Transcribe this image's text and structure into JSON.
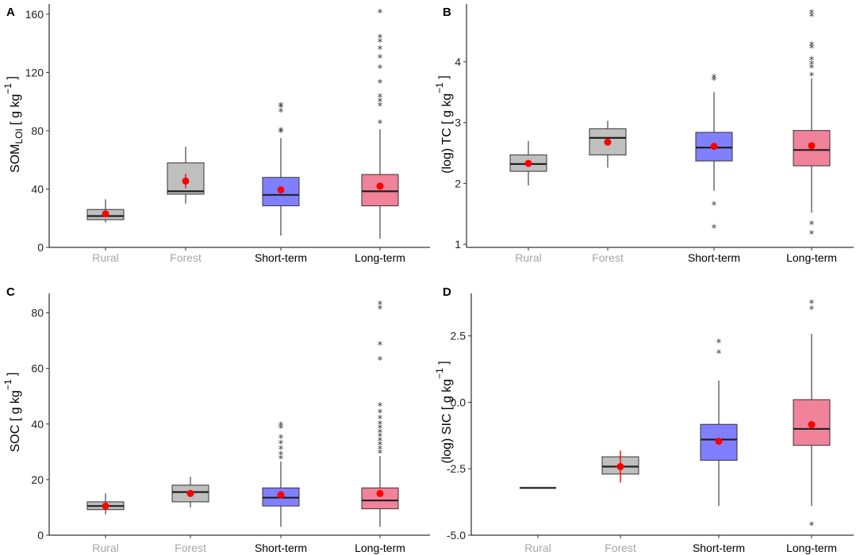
{
  "chart_data": [
    {
      "type": "box",
      "panel": "A",
      "categories": [
        "Rural",
        "Forest",
        "Short-term",
        "Long-term"
      ],
      "ylabel_main": "SOM",
      "ylabel_sub": "LOI",
      "ylabel_unit": " [ g  kg",
      "ylabel_exp": "−1",
      "ylabel_close": " ]",
      "yticks": [
        "0",
        "40",
        "80",
        "120",
        "160"
      ],
      "ylim": [
        0,
        167
      ],
      "fills": [
        "#bfbfbf",
        "#bfbfbf",
        "#8080ff",
        "#f0829a"
      ],
      "label_colors": [
        "#a6a6a6",
        "#a6a6a6",
        "#000000",
        "#000000"
      ],
      "boxes": [
        {
          "lo": 17,
          "q1": 19,
          "med": 21.5,
          "q3": 26,
          "hi": 33,
          "mean": 23,
          "mean_err": 0,
          "outliers": []
        },
        {
          "lo": 30,
          "q1": 36.5,
          "med": 38.5,
          "q3": 58,
          "hi": 69,
          "mean": 45.5,
          "mean_err": 5,
          "outliers": []
        },
        {
          "lo": 8,
          "q1": 28.5,
          "med": 36,
          "q3": 48,
          "hi": 75,
          "mean": 39.5,
          "mean_err": 1.5,
          "outliers": [
            79,
            80,
            93,
            96,
            97
          ]
        },
        {
          "lo": 6,
          "q1": 28.5,
          "med": 38.5,
          "q3": 50,
          "hi": 81,
          "mean": 42,
          "mean_err": 1.5,
          "outliers": [
            85,
            97,
            100,
            103,
            113,
            123,
            130,
            136,
            141,
            144,
            161
          ]
        }
      ]
    },
    {
      "type": "box",
      "panel": "B",
      "categories": [
        "Rural",
        "Forest",
        "Short-term",
        "Long-term"
      ],
      "ylabel_main": "(log) TC",
      "ylabel_sub": "",
      "ylabel_unit": "  [ g  kg",
      "ylabel_exp": "−1",
      "ylabel_close": " ]",
      "yticks": [
        "1",
        "2",
        "3",
        "4"
      ],
      "ylim": [
        0.95,
        4.95
      ],
      "fills": [
        "#bfbfbf",
        "#bfbfbf",
        "#8080ff",
        "#f0829a"
      ],
      "label_colors": [
        "#a6a6a6",
        "#a6a6a6",
        "#000000",
        "#000000"
      ],
      "boxes": [
        {
          "lo": 1.97,
          "q1": 2.2,
          "med": 2.32,
          "q3": 2.47,
          "hi": 2.7,
          "mean": 2.33,
          "mean_err": 0.03,
          "outliers": []
        },
        {
          "lo": 2.26,
          "q1": 2.47,
          "med": 2.75,
          "q3": 2.9,
          "hi": 3.03,
          "mean": 2.68,
          "mean_err": 0.05,
          "outliers": []
        },
        {
          "lo": 1.88,
          "q1": 2.37,
          "med": 2.59,
          "q3": 2.84,
          "hi": 3.5,
          "mean": 2.61,
          "mean_err": 0.02,
          "outliers": [
            1.27,
            1.65,
            3.7,
            3.74
          ]
        },
        {
          "lo": 1.52,
          "q1": 2.29,
          "med": 2.55,
          "q3": 2.87,
          "hi": 3.73,
          "mean": 2.62,
          "mean_err": 0.02,
          "outliers": [
            1.17,
            1.33,
            3.77,
            3.9,
            3.96,
            4.03,
            4.23,
            4.27,
            4.75,
            4.8
          ]
        }
      ]
    },
    {
      "type": "box",
      "panel": "C",
      "categories": [
        "Rural",
        "Forest",
        "Short-term",
        "Long-term"
      ],
      "ylabel_main": "SOC",
      "ylabel_sub": "",
      "ylabel_unit": "  [ g  kg",
      "ylabel_exp": "−1",
      "ylabel_close": " ]",
      "yticks": [
        "0",
        "20",
        "40",
        "60",
        "80"
      ],
      "ylim": [
        0,
        87
      ],
      "fills": [
        "#bfbfbf",
        "#bfbfbf",
        "#8080ff",
        "#f0829a"
      ],
      "label_colors": [
        "#a6a6a6",
        "#a6a6a6",
        "#000000",
        "#000000"
      ],
      "boxes": [
        {
          "lo": 7.5,
          "q1": 9.2,
          "med": 10.5,
          "q3": 12,
          "hi": 15,
          "mean": 10.5,
          "mean_err": 0,
          "outliers": []
        },
        {
          "lo": 10,
          "q1": 12,
          "med": 15.5,
          "q3": 18,
          "hi": 21,
          "mean": 15,
          "mean_err": 0.8,
          "outliers": []
        },
        {
          "lo": 3,
          "q1": 10.5,
          "med": 13.5,
          "q3": 17,
          "hi": 26.5,
          "mean": 14.5,
          "mean_err": 0.5,
          "outliers": [
            27.5,
            29,
            31,
            33,
            35,
            38.5,
            39.5
          ]
        },
        {
          "lo": 3,
          "q1": 9.5,
          "med": 12.5,
          "q3": 17,
          "hi": 28.5,
          "mean": 15,
          "mean_err": 0.5,
          "outliers": [
            29.5,
            31,
            32.5,
            34,
            35.5,
            37,
            38.5,
            40,
            42,
            44,
            46.5,
            63,
            68.5,
            81.5,
            83
          ]
        }
      ]
    },
    {
      "type": "box",
      "panel": "D",
      "categories": [
        "Rural",
        "Forest",
        "Short-term",
        "Long-term"
      ],
      "ylabel_main": "(log) SIC",
      "ylabel_sub": "",
      "ylabel_unit": "  [ g  kg",
      "ylabel_exp": "−1",
      "ylabel_close": " ]",
      "yticks": [
        "-5.0",
        "-2.5",
        "0.0",
        "2.5"
      ],
      "ylim": [
        -5.0,
        4.1
      ],
      "fills": [
        "#bfbfbf",
        "#bfbfbf",
        "#8080ff",
        "#f0829a"
      ],
      "label_colors": [
        "#a6a6a6",
        "#a6a6a6",
        "#000000",
        "#000000"
      ],
      "boxes": [
        {
          "lo": -3.22,
          "q1": -3.22,
          "med": -3.22,
          "q3": -3.22,
          "hi": -3.22,
          "mean": null,
          "mean_err": 0,
          "outliers": []
        },
        {
          "lo": -2.7,
          "q1": -2.7,
          "med": -2.42,
          "q3": -2.05,
          "hi": -2.05,
          "mean": -2.42,
          "mean_err": 0.6,
          "outliers": []
        },
        {
          "lo": -3.9,
          "q1": -2.18,
          "med": -1.4,
          "q3": -0.83,
          "hi": 0.82,
          "mean": -1.47,
          "mean_err": 0.1,
          "outliers": [
            1.85,
            2.25
          ]
        },
        {
          "lo": -3.9,
          "q1": -1.62,
          "med": -1.0,
          "q3": 0.1,
          "hi": 2.58,
          "mean": -0.84,
          "mean_err": 0.1,
          "outliers": [
            -4.62,
            3.5,
            3.72
          ]
        }
      ]
    }
  ]
}
